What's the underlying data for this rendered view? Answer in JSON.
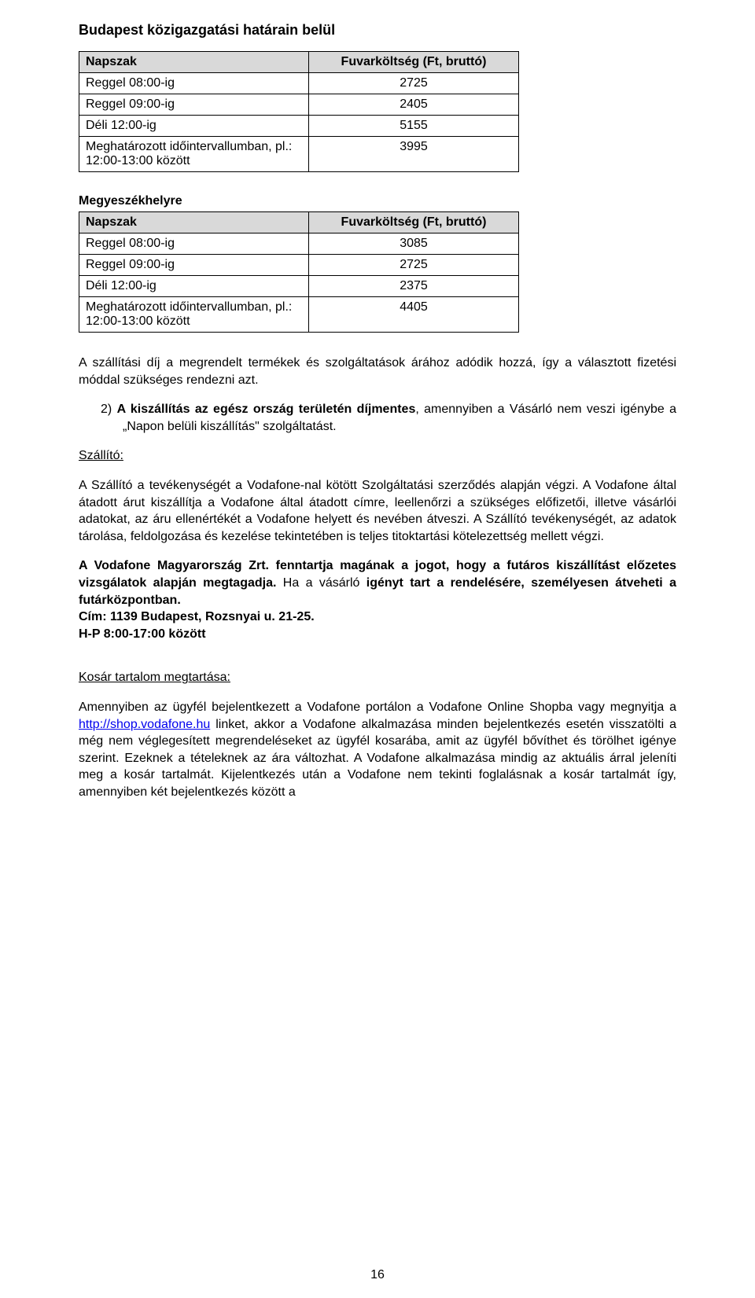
{
  "section1": {
    "title": "Budapest közigazgatási határain belül",
    "headers": {
      "col1": "Napszak",
      "col2": "Fuvarköltség (Ft, bruttó)"
    },
    "rows": [
      {
        "label": "Reggel 08:00-ig",
        "value": "2725"
      },
      {
        "label": "Reggel 09:00-ig",
        "value": "2405"
      },
      {
        "label": "Déli 12:00-ig",
        "value": "5155"
      },
      {
        "label": "Meghatározott időintervallumban, pl.: 12:00-13:00 között",
        "value": "3995"
      }
    ]
  },
  "section2": {
    "title": "Megyeszékhelyre",
    "headers": {
      "col1": "Napszak",
      "col2": "Fuvarköltség (Ft, bruttó)"
    },
    "rows": [
      {
        "label": "Reggel 08:00-ig",
        "value": "3085"
      },
      {
        "label": "Reggel 09:00-ig",
        "value": "2725"
      },
      {
        "label": "Déli 12:00-ig",
        "value": "2375"
      },
      {
        "label": "Meghatározott időintervallumban, pl.: 12:00-13:00 között",
        "value": "4405"
      }
    ]
  },
  "para1": "A szállítási díj a megrendelt termékek és szolgáltatások árához adódik hozzá, így a választott fizetési móddal szükséges rendezni azt.",
  "para2_prefix": "2) ",
  "para2_bold": "A kiszállítás az egész ország területén díjmentes",
  "para2_rest": ", amennyiben a Vásárló nem veszi igénybe a „Napon belüli kiszállítás\" szolgáltatást.",
  "szallito": {
    "heading": "Szállító:",
    "p1": "A Szállító a tevékenységét a Vodafone-nal kötött Szolgáltatási szerződés alapján végzi. A Vodafone által átadott árut kiszállítja a Vodafone által átadott címre, leellenőrzi a szükséges előfizetői, illetve vásárlói adatokat, az áru ellenértékét a Vodafone helyett és nevében átveszi. A Szállító tevékenységét, az adatok tárolása, feldolgozása és kezelése tekintetében is teljes titoktartási kötelezettség mellett végzi.",
    "p2_b1": "A Vodafone Magyarország Zrt. fenntartja magának a jogot, hogy a futáros kiszállítást előzetes vizsgálatok alapján megtagadja. ",
    "p2_plain": "Ha a vásárló",
    "p2_b2": " igényt tart a rendelésére, személyesen átveheti a futárközpontban.",
    "p3": "Cím: 1139 Budapest, Rozsnyai u. 21-25.",
    "p4": "H-P 8:00-17:00 között"
  },
  "kosar": {
    "heading": "Kosár tartalom megtartása:",
    "p1_a": "Amennyiben az ügyfél bejelentkezett a Vodafone portálon a Vodafone Online Shopba vagy megnyitja a ",
    "link": "http://shop.vodafone.hu",
    "p1_b": " linket, akkor a Vodafone alkalmazása minden bejelentkezés esetén visszatölti a még nem véglegesített megrendeléseket az ügyfél kosarába, amit az ügyfél bővíthet és törölhet igénye szerint. Ezeknek a tételeknek az ára változhat. A Vodafone alkalmazása mindig az aktuális árral jeleníti meg a kosár tartalmát. Kijelentkezés után a Vodafone nem tekinti foglalásnak a kosár tartalmát így, amennyiben két bejelentkezés között a"
  },
  "pagenum": "16"
}
